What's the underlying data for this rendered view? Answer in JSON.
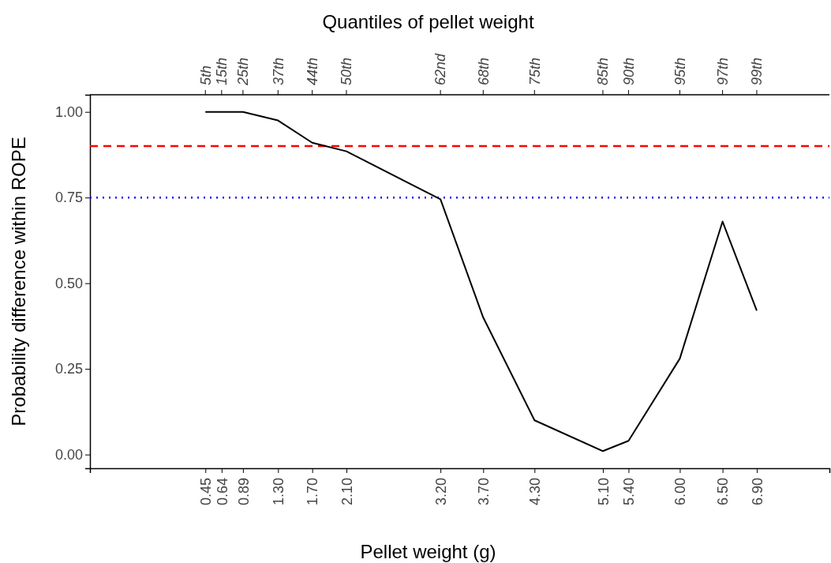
{
  "chart_data": {
    "type": "line",
    "xlabel": "Pellet weight (g)",
    "x2label": "Quantiles of pellet weight",
    "ylabel": "Probability difference within ROPE",
    "x": [
      0.45,
      0.64,
      0.89,
      1.3,
      1.7,
      2.1,
      3.2,
      3.7,
      4.3,
      5.1,
      5.4,
      6.0,
      6.5,
      6.9
    ],
    "series": [
      {
        "color": "#000000",
        "values": [
          1.0,
          1.0,
          1.0,
          0.975,
          0.91,
          0.885,
          0.745,
          0.4,
          0.1,
          0.01,
          0.04,
          0.28,
          0.68,
          0.42
        ]
      }
    ],
    "xlim": [
      -0.9,
      7.75
    ],
    "ylim": [
      -0.04,
      1.05
    ],
    "xticks": [
      {
        "value": 0.45,
        "label": "0.45"
      },
      {
        "value": 0.64,
        "label": "0.64"
      },
      {
        "value": 0.89,
        "label": "0.89"
      },
      {
        "value": 1.3,
        "label": "1.30"
      },
      {
        "value": 1.7,
        "label": "1.70"
      },
      {
        "value": 2.1,
        "label": "2.10"
      },
      {
        "value": 3.2,
        "label": "3.20"
      },
      {
        "value": 3.7,
        "label": "3.70"
      },
      {
        "value": 4.3,
        "label": "4.30"
      },
      {
        "value": 5.1,
        "label": "5.10"
      },
      {
        "value": 5.4,
        "label": "5.40"
      },
      {
        "value": 6.0,
        "label": "6.00"
      },
      {
        "value": 6.5,
        "label": "6.50"
      },
      {
        "value": 6.9,
        "label": "6.90"
      }
    ],
    "annotations": [
      {
        "text": "5th",
        "x": 0.45
      },
      {
        "text": "15th",
        "x": 0.64
      },
      {
        "text": "25th",
        "x": 0.89
      },
      {
        "text": "37th",
        "x": 1.3
      },
      {
        "text": "44th",
        "x": 1.7
      },
      {
        "text": "50th",
        "x": 2.1
      },
      {
        "text": "62nd",
        "x": 3.2
      },
      {
        "text": "68th",
        "x": 3.7
      },
      {
        "text": "75th",
        "x": 4.3
      },
      {
        "text": "85th",
        "x": 5.1
      },
      {
        "text": "90th",
        "x": 5.4
      },
      {
        "text": "95th",
        "x": 6.0
      },
      {
        "text": "97th",
        "x": 6.5
      },
      {
        "text": "99th",
        "x": 6.9
      }
    ],
    "yticks": [
      {
        "value": 0,
        "label": "0.00"
      },
      {
        "value": 0.25,
        "label": "0.25"
      },
      {
        "value": 0.5,
        "label": "0.50"
      },
      {
        "value": 0.75,
        "label": "0.75"
      },
      {
        "value": 1,
        "label": "1.00"
      }
    ],
    "ref_lines": [
      {
        "axis": "y",
        "value": 0.9,
        "color": "#ff0000",
        "line_style": "dashed"
      },
      {
        "axis": "y",
        "value": 0.75,
        "color": "#0000ff",
        "line_style": "dotted"
      }
    ],
    "grid": false,
    "marker": "none",
    "line_style": "solid"
  }
}
